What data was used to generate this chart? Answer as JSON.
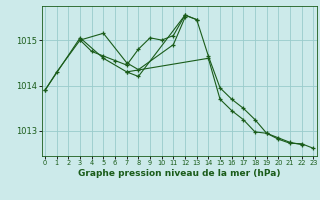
{
  "background_color": "#cceaea",
  "plot_bg_color": "#cceaea",
  "grid_color": "#99cccc",
  "line_color": "#1a5c1a",
  "title": "Graphe pression niveau de la mer (hPa)",
  "xlim": [
    -0.3,
    23.3
  ],
  "ylim": [
    1012.45,
    1015.75
  ],
  "yticks": [
    1013,
    1014,
    1015
  ],
  "xticks": [
    0,
    1,
    2,
    3,
    4,
    5,
    6,
    7,
    8,
    9,
    10,
    11,
    12,
    13,
    14,
    15,
    16,
    17,
    18,
    19,
    20,
    21,
    22,
    23
  ],
  "xtick_labels": [
    "0",
    "1",
    "2",
    "3",
    "4",
    "5",
    "6",
    "7",
    "8",
    "9",
    "10",
    "11",
    "12",
    "13",
    "14",
    "15",
    "16",
    "17",
    "18",
    "19",
    "20",
    "21",
    "22",
    "23"
  ],
  "footer_color": "#2d6b2d",
  "footer_text_color": "#ffffff",
  "series": [
    {
      "x": [
        0,
        1,
        3,
        4,
        5,
        6,
        7,
        8,
        9,
        10,
        11,
        12,
        13,
        14,
        15,
        16,
        17,
        18,
        19,
        20,
        21,
        22
      ],
      "y": [
        1013.9,
        1014.3,
        1015.0,
        1014.75,
        1014.65,
        1014.55,
        1014.45,
        1014.8,
        1015.05,
        1015.0,
        1015.1,
        1015.55,
        1015.45,
        1014.65,
        1013.95,
        1013.7,
        1013.5,
        1013.25,
        1012.95,
        1012.85,
        1012.75,
        1012.7
      ]
    },
    {
      "x": [
        3,
        5,
        7,
        8,
        11,
        12
      ],
      "y": [
        1015.0,
        1015.15,
        1014.5,
        1014.35,
        1014.9,
        1015.5
      ]
    },
    {
      "x": [
        0,
        3,
        5,
        7,
        8,
        12,
        13
      ],
      "y": [
        1013.9,
        1015.05,
        1014.6,
        1014.3,
        1014.2,
        1015.55,
        1015.45
      ]
    },
    {
      "x": [
        7,
        14,
        15,
        16,
        17,
        18,
        19,
        20,
        21,
        22,
        23
      ],
      "y": [
        1014.3,
        1014.6,
        1013.7,
        1013.45,
        1013.25,
        1012.98,
        1012.95,
        1012.82,
        1012.73,
        1012.72,
        1012.62
      ]
    }
  ]
}
